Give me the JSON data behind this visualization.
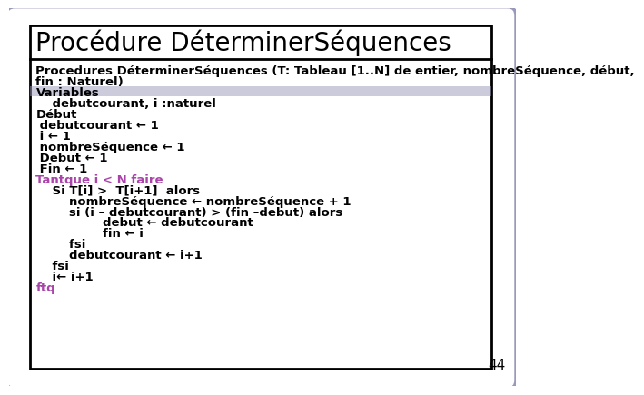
{
  "title": "Procédure DéterminerSéquences",
  "background_outer": "#ffffff",
  "background_inner": "#ffffff",
  "border_color": "#000000",
  "outer_border_color": "#9999bb",
  "title_color": "#000000",
  "title_fontsize": 20,
  "page_number": "44",
  "header_line1": "Procedures DéterminerSéquences (T: Tableau [1..N] de entier, nombreSéquence, début,",
  "header_line2": "fin : Naturel)",
  "variables_label": "Variables",
  "variables_line": "    debutcourant, i :naturel",
  "code_lines": [
    {
      "text": "Début",
      "color": "#000000"
    },
    {
      "text": " debutcourant ← 1",
      "color": "#000000"
    },
    {
      "text": " i ← 1",
      "color": "#000000"
    },
    {
      "text": " nombreSéquence ← 1",
      "color": "#000000"
    },
    {
      "text": " Debut ← 1",
      "color": "#000000"
    },
    {
      "text": " Fin ← 1",
      "color": "#000000"
    },
    {
      "text": "Tantque i < N faire",
      "color": "#aa44aa"
    },
    {
      "text": "    Si T[i] >  T[i+1]  alors",
      "color": "#000000"
    },
    {
      "text": "        nombreSéquence ← nombreSéquence + 1",
      "color": "#000000"
    },
    {
      "text": "        si (i – debutcourant) > (fin –debut) alors",
      "color": "#000000"
    },
    {
      "text": "                debut ← debutcourant",
      "color": "#000000"
    },
    {
      "text": "                fin ← i",
      "color": "#000000"
    },
    {
      "text": "        fsi",
      "color": "#000000"
    },
    {
      "text": "        debutcourant ← i+1",
      "color": "#000000"
    },
    {
      "text": "    fsi",
      "color": "#000000"
    },
    {
      "text": "    i← i+1",
      "color": "#000000"
    },
    {
      "text": "ftq",
      "color": "#aa44aa"
    }
  ],
  "separator_color": "#9999bb",
  "code_fontsize": 9.5,
  "header_fontsize": 9.5,
  "variables_fontsize": 9.5
}
